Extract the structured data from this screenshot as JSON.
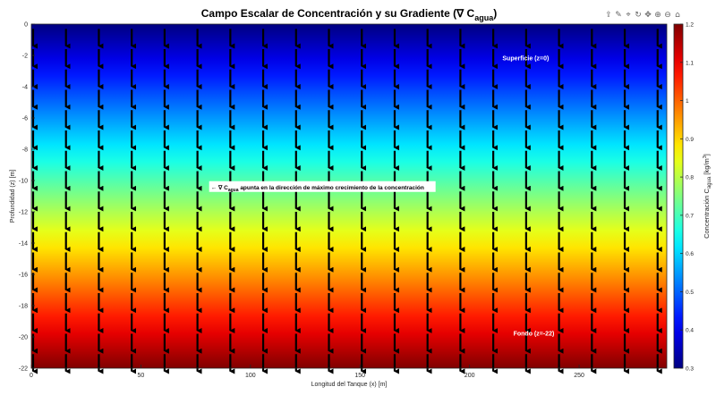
{
  "toolbar": {
    "icons": [
      "export-icon",
      "brush-icon",
      "datatip-icon",
      "rotate-icon",
      "pan-icon",
      "zoom-in-icon",
      "zoom-out-icon",
      "home-icon"
    ],
    "glyphs": [
      "⇪",
      "✎",
      "⌖",
      "↻",
      "✥",
      "⊕",
      "⊖",
      "⌂"
    ]
  },
  "chart_data": {
    "type": "heatmap",
    "title_main": "Campo Escalar de Concentración y su Gradiente (∇ C",
    "title_sub": "agua",
    "title_end": ")",
    "xlabel": "Longitud del Tanque (x) [m]",
    "ylabel": "Profundidad (z) [m]",
    "colorbar_label_main": "Concentración C",
    "colorbar_label_sub": "agua",
    "colorbar_label_unit": " [kg/m",
    "colorbar_label_sup": "3",
    "colorbar_label_end": "]",
    "xlim": [
      0,
      290
    ],
    "ylim": [
      -22,
      0
    ],
    "clim": [
      0.3,
      1.2
    ],
    "colormap": "jet",
    "x_ticks": [
      0,
      50,
      100,
      150,
      200,
      250
    ],
    "y_ticks": [
      0,
      -2,
      -4,
      -6,
      -8,
      -10,
      -12,
      -14,
      -16,
      -18,
      -20,
      -22
    ],
    "c_ticks": [
      0.3,
      0.4,
      0.5,
      0.6,
      0.7,
      0.8,
      0.9,
      1,
      1.1,
      1.2
    ],
    "field": {
      "z": [
        0,
        -22
      ],
      "c": [
        0.3,
        1.2
      ],
      "description": "linear in depth"
    },
    "quiver": {
      "x": [
        0,
        15,
        30,
        45,
        60,
        75,
        90,
        105,
        120,
        135,
        150,
        165,
        180,
        195,
        210,
        225,
        240,
        255,
        270,
        285
      ],
      "color": "#000000"
    },
    "annotations": [
      {
        "id": "surface",
        "text": "Superficie (z=0)",
        "x": 215,
        "y": -2.2,
        "color": "#ffffff"
      },
      {
        "id": "bottom",
        "text": "Fondo (z=-22)",
        "x": 220,
        "y": -19.8,
        "color": "#ffffff"
      },
      {
        "id": "gradient",
        "text_pre": "← ∇ C",
        "text_sub": "agua",
        "text_post": " apunta en la dirección de máximo crecimiento de la concentración",
        "x": 93,
        "y": -10.5,
        "bg": "#ffffff"
      }
    ]
  }
}
